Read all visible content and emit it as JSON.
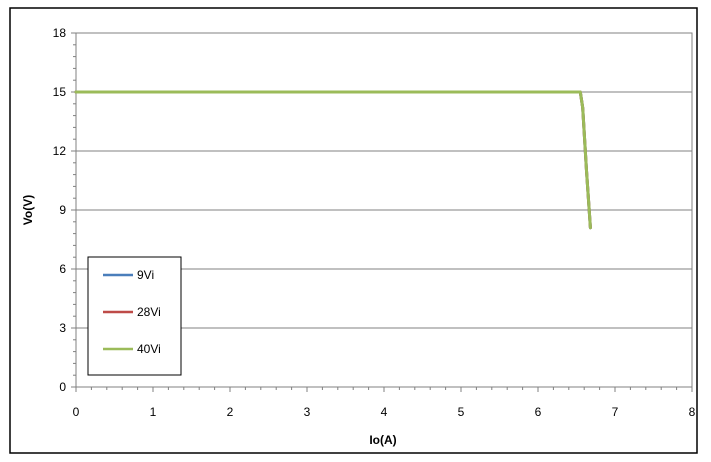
{
  "chart_data": {
    "type": "line",
    "xlabel": "Io(A)",
    "ylabel": "Vo(V)",
    "xlim": [
      0,
      8
    ],
    "ylim": [
      0,
      18
    ],
    "xticks": [
      0,
      1,
      2,
      3,
      4,
      5,
      6,
      7,
      8
    ],
    "yticks": [
      0,
      3,
      6,
      9,
      12,
      15,
      18
    ],
    "grid": "horizontal major gridlines",
    "legend_position": "bottom-left",
    "series": [
      {
        "name": "9Vi",
        "color": "#4a7ebb",
        "x": [
          0,
          6.55,
          6.58,
          6.63,
          6.68
        ],
        "y": [
          15,
          15,
          14.2,
          11.0,
          8.1
        ]
      },
      {
        "name": "28Vi",
        "color": "#be4b48",
        "x": [
          0,
          6.55,
          6.58,
          6.63,
          6.68
        ],
        "y": [
          15,
          15,
          14.2,
          11.0,
          8.1
        ]
      },
      {
        "name": "40Vi",
        "color": "#9bbb59",
        "x": [
          0,
          6.55,
          6.58,
          6.63,
          6.68
        ],
        "y": [
          15,
          15,
          14.2,
          11.0,
          8.1
        ]
      }
    ]
  }
}
